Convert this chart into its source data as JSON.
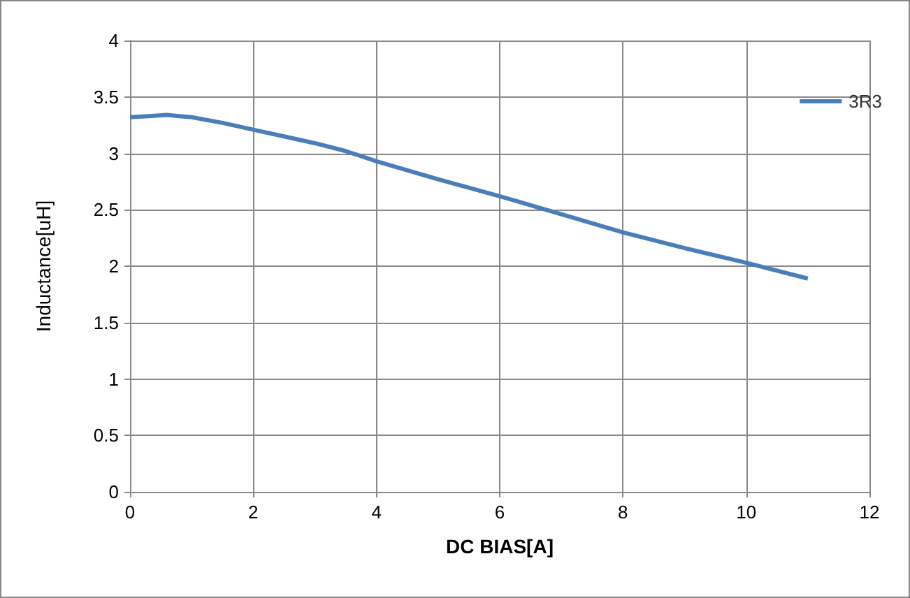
{
  "chart_data": {
    "type": "line",
    "xlabel": "DC BIAS[A]",
    "ylabel": "Inductance[uH]",
    "x": [
      0,
      0.3,
      0.6,
      1,
      1.5,
      2,
      2.5,
      3,
      3.5,
      4,
      5,
      6,
      7,
      8,
      9,
      10,
      11
    ],
    "series": [
      {
        "name": "3R3",
        "color": "#4a7ebb",
        "values": [
          3.32,
          3.33,
          3.34,
          3.32,
          3.27,
          3.21,
          3.15,
          3.09,
          3.02,
          2.93,
          2.77,
          2.62,
          2.46,
          2.3,
          2.16,
          2.03,
          1.89
        ]
      }
    ],
    "xlim": [
      0,
      12
    ],
    "xticks": [
      0,
      2,
      4,
      6,
      8,
      10,
      12
    ],
    "ylim": [
      0,
      4
    ],
    "yticks": [
      0,
      0.5,
      1,
      1.5,
      2,
      2.5,
      3,
      3.5,
      4
    ],
    "grid": true,
    "legend": "top right",
    "marker": "none",
    "line_style": "solid"
  }
}
